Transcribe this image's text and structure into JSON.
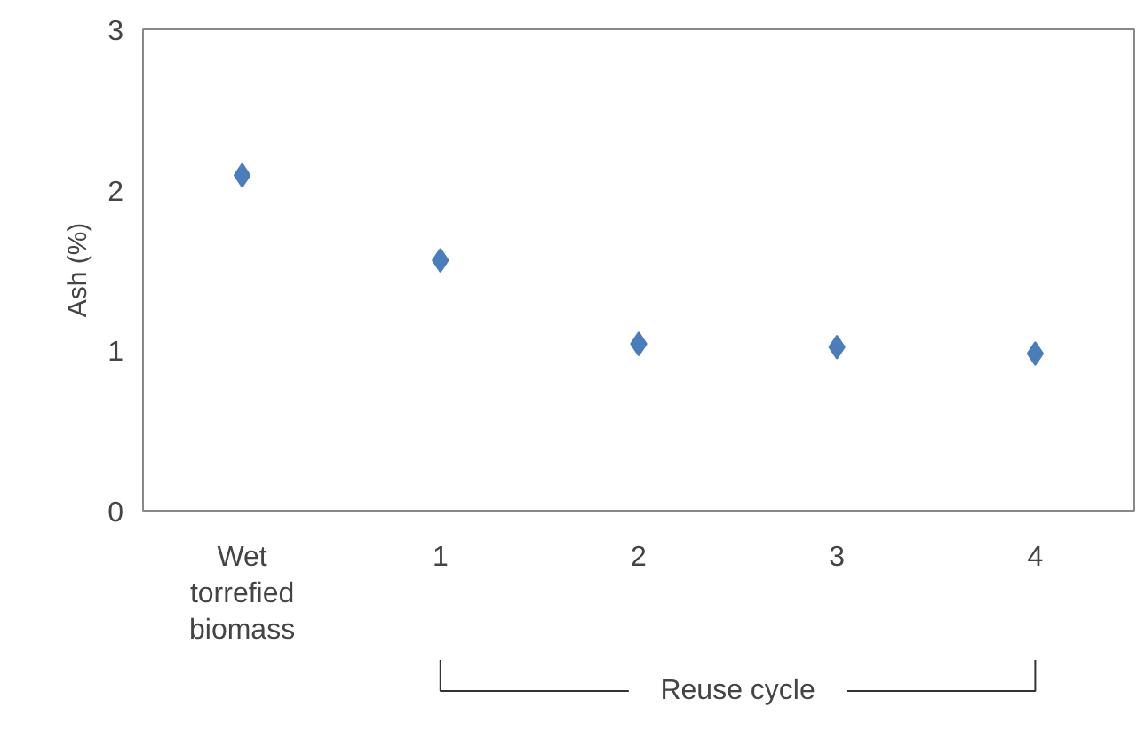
{
  "chart_data": {
    "type": "scatter",
    "ylabel": "Ash (%)",
    "categories": [
      "Wet torrefied biomass",
      "1",
      "2",
      "3",
      "4"
    ],
    "series": [
      {
        "color": "#4a7ebb",
        "values": [
          2.09,
          1.56,
          1.04,
          1.02,
          0.98
        ]
      }
    ],
    "ylim": [
      0,
      3
    ],
    "yticks": [
      0,
      1,
      2,
      3
    ],
    "marker": "diamond",
    "grid": false,
    "annotations": [
      "Reuse cycle"
    ]
  }
}
